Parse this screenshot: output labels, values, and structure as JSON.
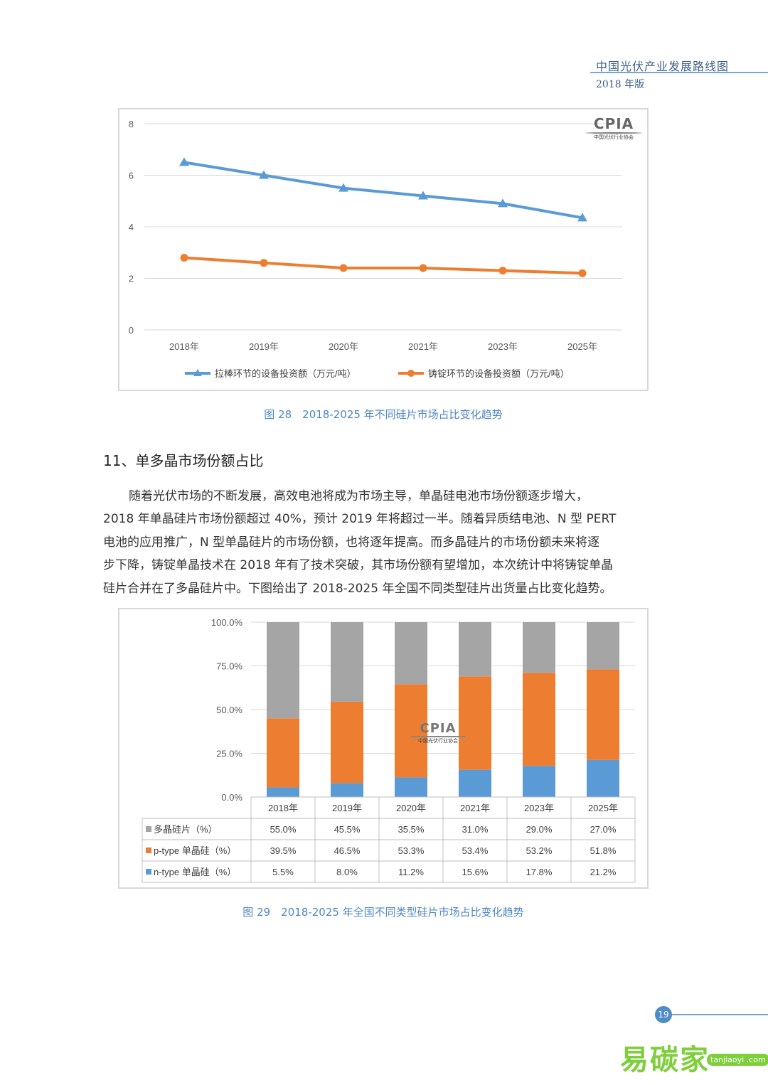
{
  "header": {
    "title": "中国光伏产业发展路线图",
    "edition": "2018 年版"
  },
  "chart1": {
    "caption": "图 28　2018-2025 年不同硅片市场占比变化趋势",
    "logo": {
      "text": "CPIA",
      "sub": "中国光伏行业协会"
    }
  },
  "chart2": {
    "caption": "图 29　2018-2025 年全国不同类型硅片市场占比变化趋势",
    "logo": {
      "text": "CPIA",
      "sub": "中国光伏行业协会"
    }
  },
  "section": {
    "heading": "11、单多晶市场份额占比",
    "paragraph_lines": [
      "随着光伏市场的不断发展，高效电池将成为市场主导，单晶硅电池市场份额逐步增大，",
      "2018 年单晶硅片市场份额超过 40%，预计 2019 年将超过一半。随着异质结电池、N 型 PERT",
      "电池的应用推广，N 型单晶硅片的市场份额，也将逐年提高。而多晶硅片的市场份额未来将逐",
      "步下降，铸锭单晶技术在 2018 年有了技术突破，其市场份额有望增加，本次统计中将铸锭单晶",
      "硅片合并在了多晶硅片中。下图给出了 2018-2025 年全国不同类型硅片出货量占比变化趋势。"
    ]
  },
  "page_number": "19",
  "watermark": {
    "text": "易碳家",
    "url": "tanjiaoyi .com"
  },
  "colors": {
    "blue": "#5b9bd5",
    "orange": "#ed7d31",
    "gray": "#a5a5a5",
    "accent": "#4d86c5"
  },
  "chart_data": [
    {
      "type": "line",
      "categories": [
        "2018年",
        "2019年",
        "2020年",
        "2021年",
        "2023年",
        "2025年"
      ],
      "ylim": [
        0,
        8
      ],
      "yticks": [
        "0",
        "2",
        "4",
        "6",
        "8"
      ],
      "grid": true,
      "legend": "bottom",
      "series": [
        {
          "name": "拉棒环节的设备投资额（万元/吨）",
          "values": [
            6.5,
            6.0,
            5.5,
            5.2,
            4.9,
            4.35
          ],
          "color": "#5b9bd5",
          "marker": "triangle"
        },
        {
          "name": "铸锭环节的设备投资额（万元/吨）",
          "values": [
            2.8,
            2.6,
            2.4,
            2.4,
            2.3,
            2.2
          ],
          "color": "#ed7d31",
          "marker": "circle"
        }
      ]
    },
    {
      "type": "bar",
      "stacked": true,
      "categories": [
        "2018年",
        "2019年",
        "2020年",
        "2021年",
        "2023年",
        "2025年"
      ],
      "ylim": [
        0,
        100
      ],
      "yticks": [
        "0.0%",
        "25.0%",
        "50.0%",
        "75.0%",
        "100.0%"
      ],
      "grid": true,
      "series": [
        {
          "name": "n-type 单晶硅（%）",
          "values": [
            5.5,
            8.0,
            11.2,
            15.6,
            17.8,
            21.2
          ],
          "labels": [
            "5.5%",
            "8.0%",
            "11.2%",
            "15.6%",
            "17.8%",
            "21.2%"
          ],
          "color": "#5b9bd5"
        },
        {
          "name": "p-type 单晶硅（%）",
          "values": [
            39.5,
            46.5,
            53.3,
            53.4,
            53.2,
            51.8
          ],
          "labels": [
            "39.5%",
            "46.5%",
            "53.3%",
            "53.4%",
            "53.2%",
            "51.8%"
          ],
          "color": "#ed7d31"
        },
        {
          "name": "多晶硅片（%）",
          "values": [
            55.0,
            45.5,
            35.5,
            31.0,
            29.0,
            27.0
          ],
          "labels": [
            "55.0%",
            "45.5%",
            "35.5%",
            "31.0%",
            "29.0%",
            "27.0%"
          ],
          "color": "#a5a5a5"
        }
      ],
      "table_row_order": [
        2,
        1,
        0
      ]
    }
  ]
}
